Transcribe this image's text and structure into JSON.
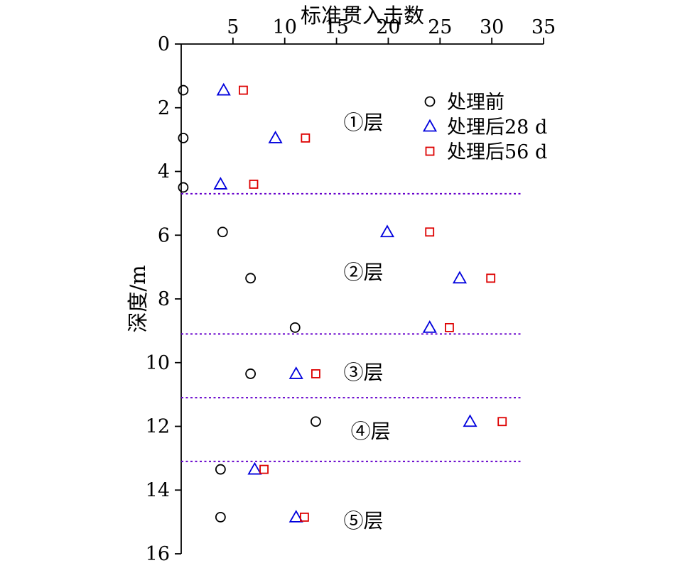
{
  "chart_data": {
    "type": "scatter",
    "title": "标准贯入击数",
    "xlabel": "标准贯入击数",
    "ylabel": "深度/m",
    "xlim": [
      0,
      35
    ],
    "ylim": [
      0,
      16
    ],
    "y_axis_inverted_depth": true,
    "x_ticks": [
      5,
      10,
      15,
      20,
      25,
      30,
      35
    ],
    "y_ticks": [
      0,
      2,
      4,
      6,
      8,
      10,
      12,
      14,
      16
    ],
    "grid": false,
    "legend_position": "inside-top-right",
    "series": [
      {
        "name": "处理前",
        "marker": "circle",
        "color": "#000000",
        "points": [
          [
            0.2,
            1.45
          ],
          [
            0.2,
            2.95
          ],
          [
            0.2,
            4.5
          ],
          [
            4,
            5.9
          ],
          [
            6.7,
            7.35
          ],
          [
            11,
            8.9
          ],
          [
            6.7,
            10.35
          ],
          [
            13,
            11.85
          ],
          [
            3.8,
            13.35
          ],
          [
            3.8,
            14.85
          ]
        ]
      },
      {
        "name": "处理后28 d",
        "marker": "triangle",
        "color": "#0000dd",
        "points": [
          [
            4.1,
            1.45
          ],
          [
            9.1,
            2.95
          ],
          [
            3.8,
            4.4
          ],
          [
            19.9,
            5.9
          ],
          [
            26.9,
            7.35
          ],
          [
            24,
            8.9
          ],
          [
            11.1,
            10.35
          ],
          [
            27.9,
            11.85
          ],
          [
            7.1,
            13.35
          ],
          [
            11.1,
            14.85
          ]
        ]
      },
      {
        "name": "处理后56 d",
        "marker": "square",
        "color": "#dd0000",
        "points": [
          [
            6,
            1.45
          ],
          [
            12,
            2.95
          ],
          [
            7,
            4.4
          ],
          [
            24,
            5.9
          ],
          [
            29.9,
            7.35
          ],
          [
            25.9,
            8.9
          ],
          [
            13,
            10.35
          ],
          [
            31,
            11.85
          ],
          [
            8,
            13.35
          ],
          [
            11.9,
            14.85
          ]
        ]
      }
    ],
    "layer_boundaries": {
      "color": "#6600cc",
      "style": "dashed",
      "x_start": 0,
      "x_end": 33,
      "depths": [
        4.7,
        9.1,
        11.1,
        13.1
      ]
    },
    "layer_labels": [
      {
        "text": "①层",
        "x": 17.6,
        "y": 2.45
      },
      {
        "text": "②层",
        "x": 17.6,
        "y": 7.15
      },
      {
        "text": "③层",
        "x": 17.6,
        "y": 10.3
      },
      {
        "text": "④层",
        "x": 18.3,
        "y": 12.15
      },
      {
        "text": "⑤层",
        "x": 17.6,
        "y": 14.95
      }
    ]
  }
}
